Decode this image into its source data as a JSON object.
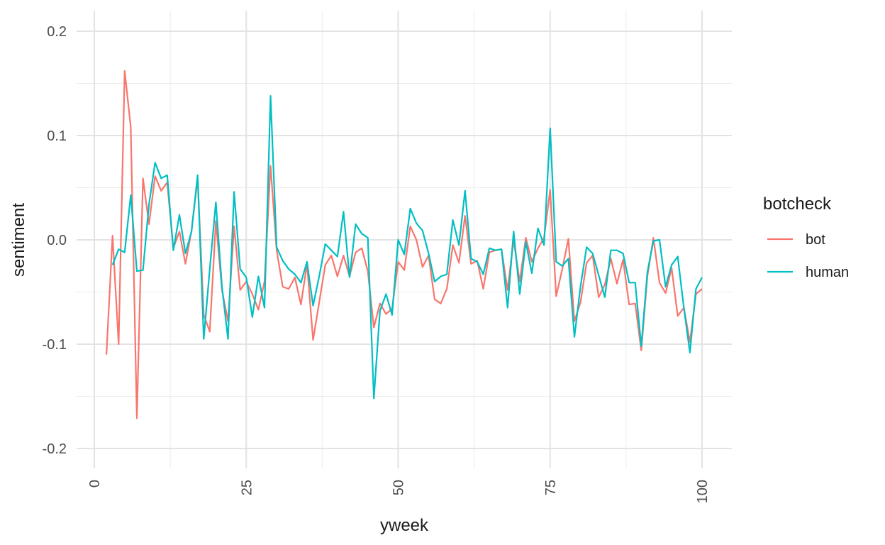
{
  "chart_data": {
    "type": "line",
    "xlabel": "yweek",
    "ylabel": "sentiment",
    "xlim": [
      0,
      100
    ],
    "ylim": [
      -0.2,
      0.2
    ],
    "x_ticks": [
      0,
      25,
      50,
      75,
      100
    ],
    "x_tick_labels": [
      "0",
      "25",
      "50",
      "75",
      "100"
    ],
    "y_ticks": [
      -0.2,
      -0.1,
      0.0,
      0.1,
      0.2
    ],
    "y_tick_labels": [
      "-0.2",
      "-0.1",
      "0.0",
      "0.1",
      "0.2"
    ],
    "grid": true,
    "legend": {
      "title": "botcheck",
      "position": "right",
      "entries": [
        "bot",
        "human"
      ]
    },
    "series": [
      {
        "name": "bot",
        "color": "#F8766D",
        "x": [
          2,
          3,
          4,
          5,
          6,
          7,
          8,
          9,
          10,
          11,
          12,
          13,
          14,
          15,
          16,
          17,
          18,
          19,
          20,
          21,
          22,
          23,
          24,
          25,
          26,
          27,
          28,
          29,
          30,
          31,
          32,
          33,
          34,
          35,
          36,
          37,
          38,
          39,
          40,
          41,
          42,
          43,
          44,
          45,
          46,
          47,
          48,
          49,
          50,
          51,
          52,
          53,
          54,
          55,
          56,
          57,
          58,
          59,
          60,
          61,
          62,
          63,
          64,
          65,
          66,
          67,
          68,
          69,
          70,
          71,
          72,
          73,
          74,
          75,
          76,
          77,
          78,
          79,
          80,
          81,
          82,
          83,
          84,
          85,
          86,
          87,
          88,
          89,
          90,
          91,
          92,
          93,
          94,
          95,
          96,
          97,
          98,
          99,
          100
        ],
        "y": [
          -0.11,
          0.004,
          -0.1,
          0.162,
          0.108,
          -0.171,
          0.059,
          0.015,
          0.061,
          0.047,
          0.055,
          -0.008,
          0.008,
          -0.023,
          0.009,
          0.059,
          -0.072,
          -0.088,
          0.018,
          -0.048,
          -0.078,
          0.013,
          -0.048,
          -0.04,
          -0.052,
          -0.067,
          -0.04,
          0.071,
          -0.01,
          -0.045,
          -0.047,
          -0.036,
          -0.062,
          -0.023,
          -0.096,
          -0.06,
          -0.024,
          -0.015,
          -0.035,
          -0.015,
          -0.035,
          -0.012,
          -0.008,
          -0.03,
          -0.084,
          -0.061,
          -0.071,
          -0.066,
          -0.021,
          -0.029,
          0.013,
          0.0,
          -0.026,
          -0.015,
          -0.057,
          -0.061,
          -0.047,
          -0.005,
          -0.022,
          0.023,
          -0.023,
          -0.02,
          -0.047,
          -0.012,
          -0.01,
          -0.009,
          -0.048,
          0.0,
          -0.04,
          0.002,
          -0.021,
          -0.008,
          0.002,
          0.048,
          -0.054,
          -0.028,
          0.001,
          -0.078,
          -0.06,
          -0.022,
          -0.015,
          -0.055,
          -0.043,
          -0.018,
          -0.042,
          -0.019,
          -0.062,
          -0.061,
          -0.106,
          -0.035,
          0.002,
          -0.041,
          -0.051,
          -0.027,
          -0.073,
          -0.065,
          -0.098,
          -0.052,
          -0.047
        ]
      },
      {
        "name": "human",
        "color": "#00BFC4",
        "x": [
          3,
          4,
          5,
          6,
          7,
          8,
          9,
          10,
          11,
          12,
          13,
          14,
          15,
          16,
          17,
          18,
          19,
          20,
          21,
          22,
          23,
          24,
          25,
          26,
          27,
          28,
          29,
          30,
          31,
          32,
          33,
          34,
          35,
          36,
          37,
          38,
          39,
          40,
          41,
          42,
          43,
          44,
          45,
          46,
          47,
          48,
          49,
          50,
          51,
          52,
          53,
          54,
          55,
          56,
          57,
          58,
          59,
          60,
          61,
          62,
          63,
          64,
          65,
          66,
          67,
          68,
          69,
          70,
          71,
          72,
          73,
          74,
          75,
          76,
          77,
          78,
          79,
          80,
          81,
          82,
          83,
          84,
          85,
          86,
          87,
          88,
          89,
          90,
          91,
          92,
          93,
          94,
          95,
          96,
          97,
          98,
          99,
          100
        ],
        "y": [
          -0.024,
          -0.009,
          -0.012,
          0.043,
          -0.03,
          -0.029,
          0.034,
          0.074,
          0.059,
          0.062,
          -0.01,
          0.024,
          -0.013,
          0.008,
          0.062,
          -0.095,
          -0.028,
          0.036,
          -0.045,
          -0.095,
          0.046,
          -0.028,
          -0.036,
          -0.074,
          -0.035,
          -0.065,
          0.138,
          -0.007,
          -0.02,
          -0.028,
          -0.033,
          -0.041,
          -0.021,
          -0.063,
          -0.035,
          -0.004,
          -0.01,
          -0.016,
          0.027,
          -0.036,
          0.015,
          0.006,
          0.002,
          -0.152,
          -0.068,
          -0.052,
          -0.072,
          0.0,
          -0.014,
          0.03,
          0.016,
          0.009,
          -0.013,
          -0.04,
          -0.035,
          -0.033,
          0.019,
          -0.005,
          0.047,
          -0.018,
          -0.021,
          -0.033,
          -0.008,
          -0.01,
          -0.009,
          -0.065,
          0.008,
          -0.052,
          -0.002,
          -0.032,
          0.011,
          -0.005,
          0.107,
          -0.021,
          -0.025,
          -0.018,
          -0.093,
          -0.045,
          -0.007,
          -0.013,
          -0.034,
          -0.055,
          -0.01,
          -0.01,
          -0.013,
          -0.041,
          -0.041,
          -0.102,
          -0.031,
          -0.001,
          0.0,
          -0.045,
          -0.024,
          -0.016,
          -0.065,
          -0.108,
          -0.047,
          -0.036
        ]
      }
    ]
  }
}
